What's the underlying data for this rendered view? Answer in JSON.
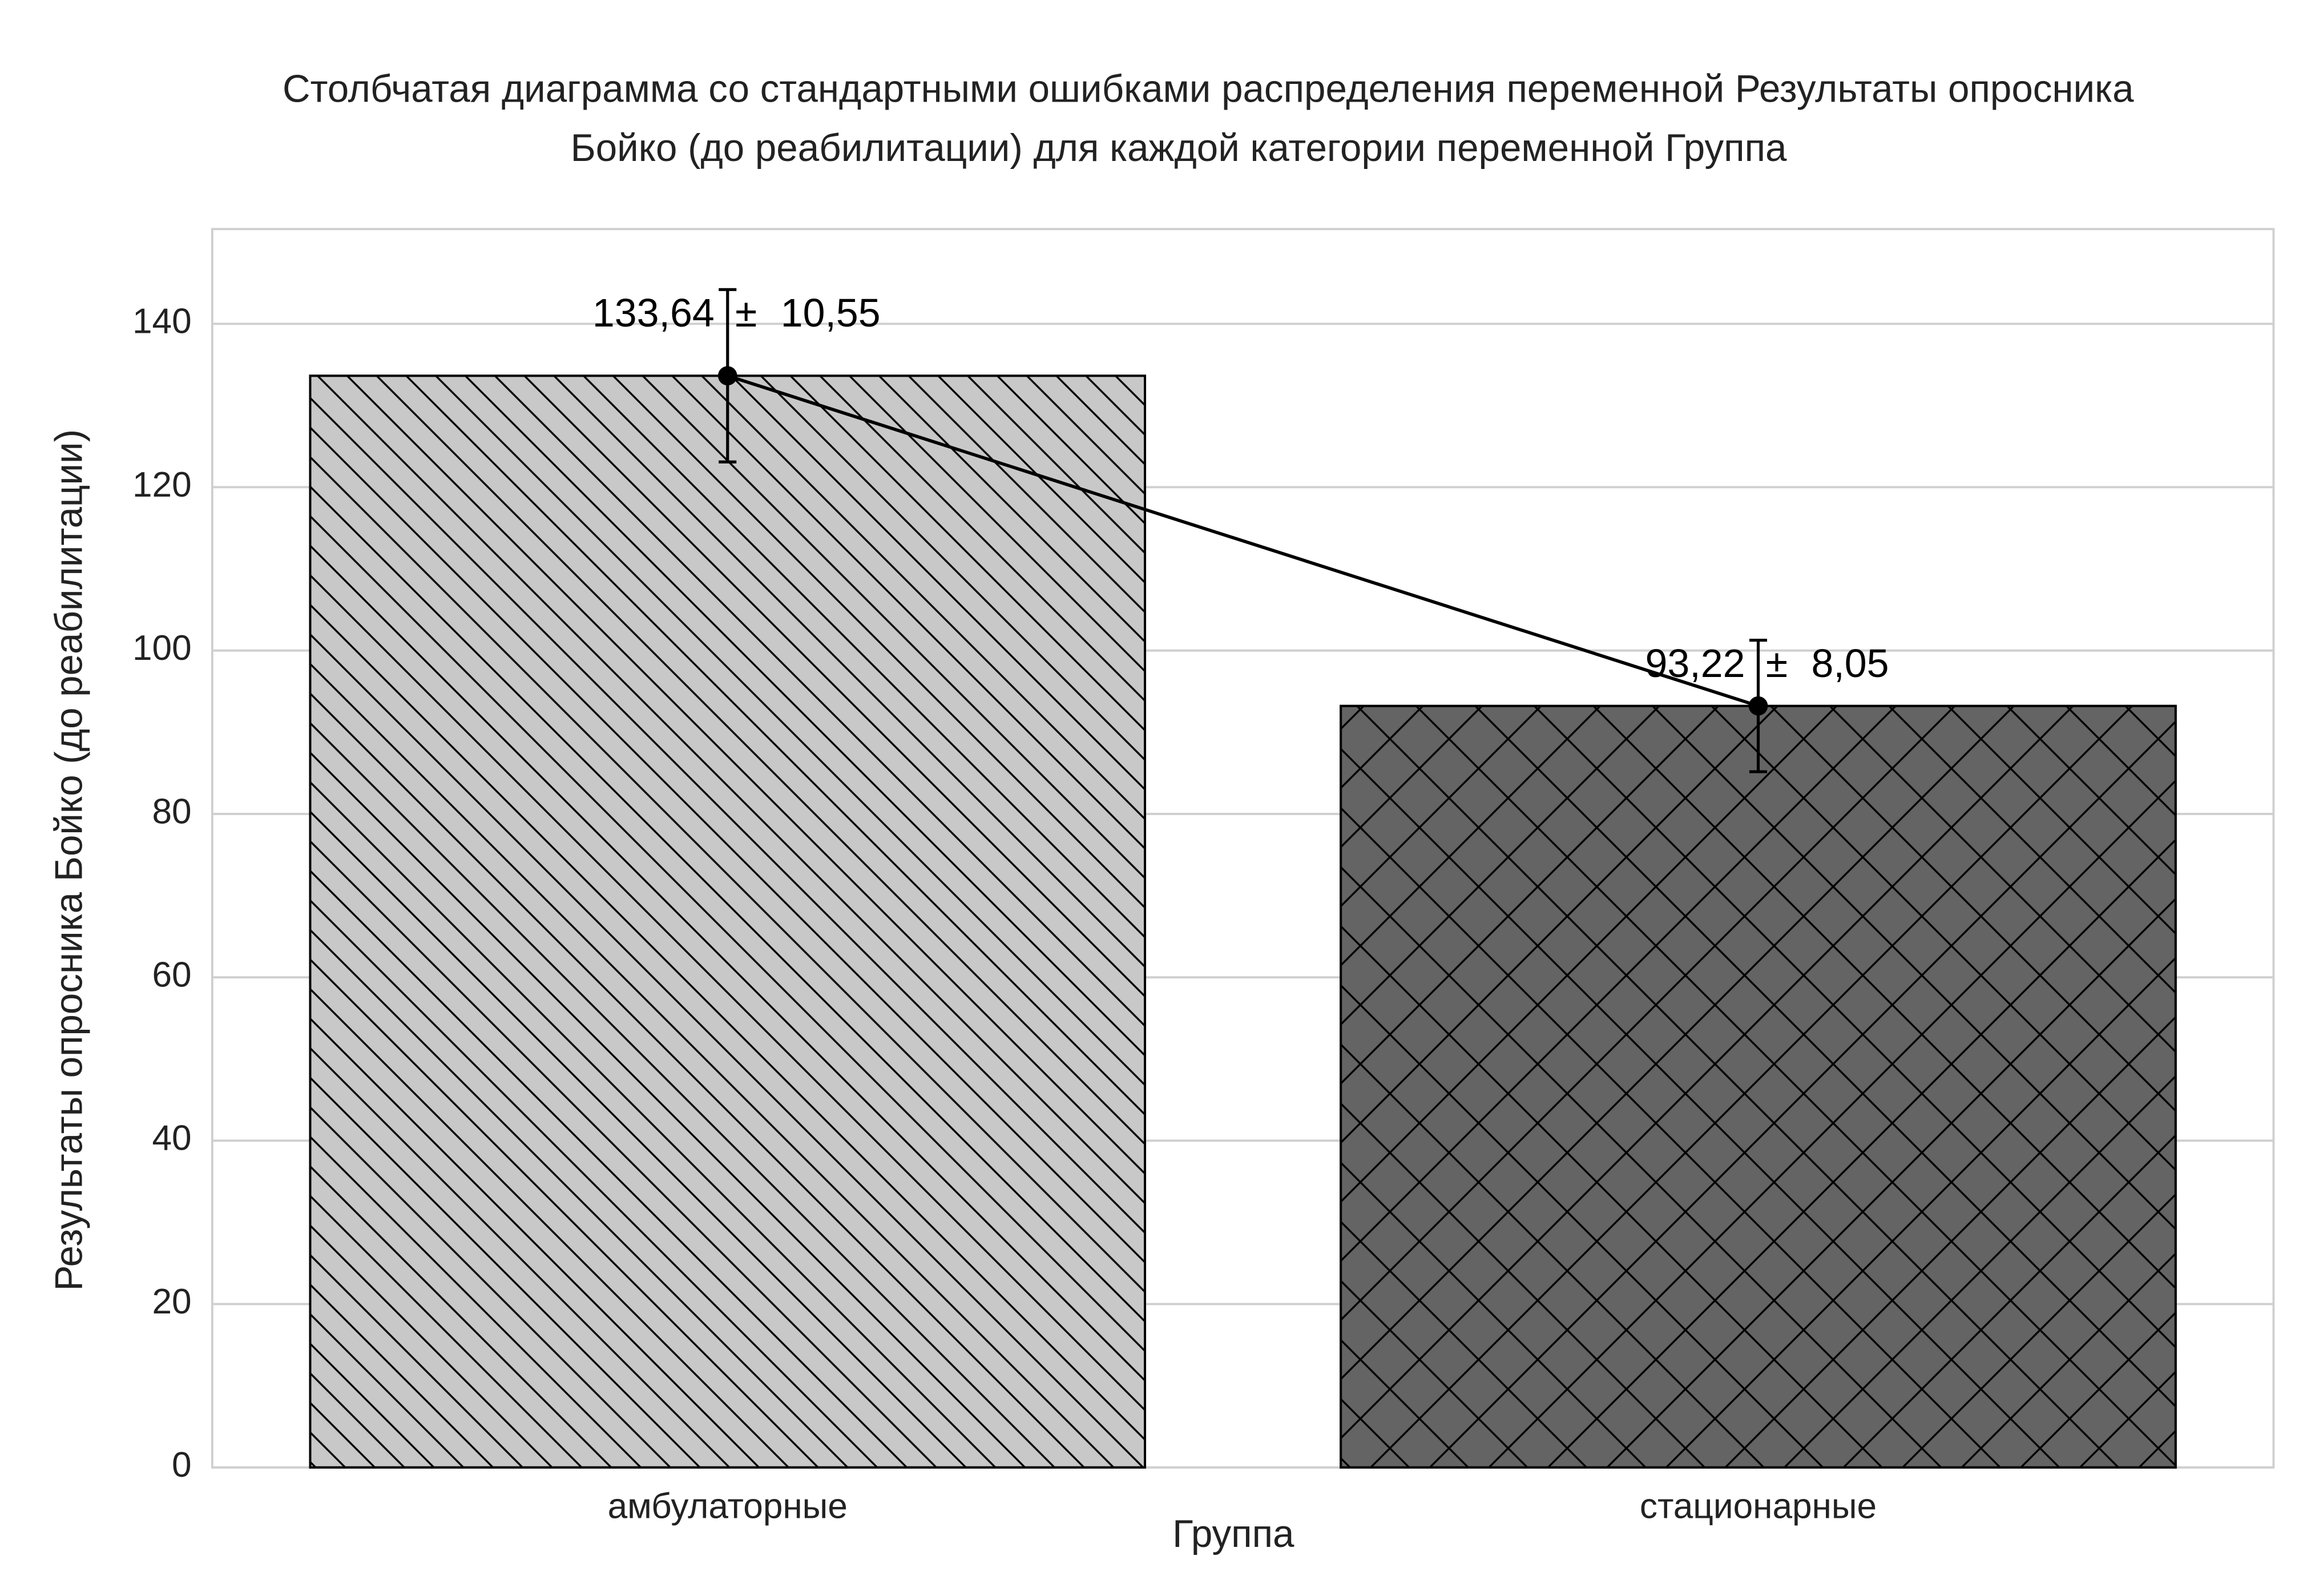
{
  "chart_data": {
    "type": "bar",
    "title": [
      "Столбчатая диаграмма со стандартными ошибками распределения переменной Результаты опросника",
      "Бойко (до реабилитации) для каждой категории переменной  Группа"
    ],
    "x_label": "Группа",
    "y_label": "Результаты опросника Бойко (до реабилитации)",
    "categories": [
      "амбулаторные",
      "стационарные"
    ],
    "values": [
      133.64,
      93.22
    ],
    "value_labels": [
      "133,64",
      "93,22"
    ],
    "errors": [
      10.55,
      8.05
    ],
    "error_labels": [
      "10,55",
      "8,05"
    ],
    "error_sign": "±",
    "colors": [
      "#c8c8c8",
      "#646464"
    ],
    "hatches": [
      "diagonal",
      "cross"
    ],
    "line_color": "#000000",
    "ylim": [
      0,
      151.6
    ],
    "yticks": [
      0,
      20,
      40,
      60,
      80,
      100,
      120,
      140
    ],
    "grid": true
  }
}
